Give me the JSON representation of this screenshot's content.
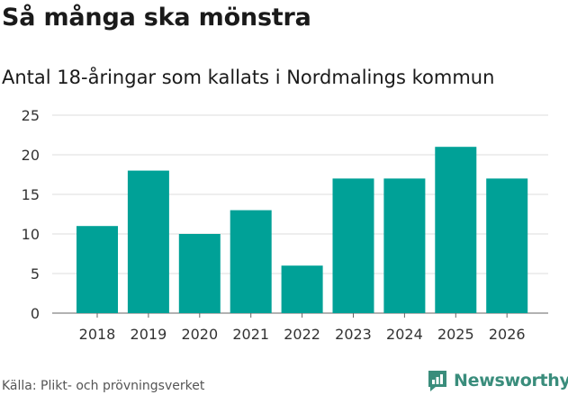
{
  "header": {
    "title": "Så många ska mönstra",
    "subtitle": "Antal 18-åringar som kallats i Nordmalings kommun"
  },
  "footer": {
    "source": "Källa: Plikt- och prövningsverket",
    "logo_text": "Newsworthy",
    "logo_icon": "newsworthy-logo-icon"
  },
  "colors": {
    "bar": "#00a197",
    "grid": "#dddddd",
    "axis": "#666666",
    "logo": "#3a8d7c"
  },
  "chart_data": {
    "type": "bar",
    "title": "Så många ska mönstra",
    "subtitle": "Antal 18-åringar som kallats i Nordmalings kommun",
    "categories": [
      "2018",
      "2019",
      "2020",
      "2021",
      "2022",
      "2023",
      "2024",
      "2025",
      "2026"
    ],
    "values": [
      11,
      18,
      10,
      13,
      6,
      17,
      17,
      21,
      17
    ],
    "xlabel": "",
    "ylabel": "",
    "ylim": [
      0,
      25
    ],
    "yticks": [
      0,
      5,
      10,
      15,
      20,
      25
    ],
    "grid": true,
    "legend": "none"
  }
}
